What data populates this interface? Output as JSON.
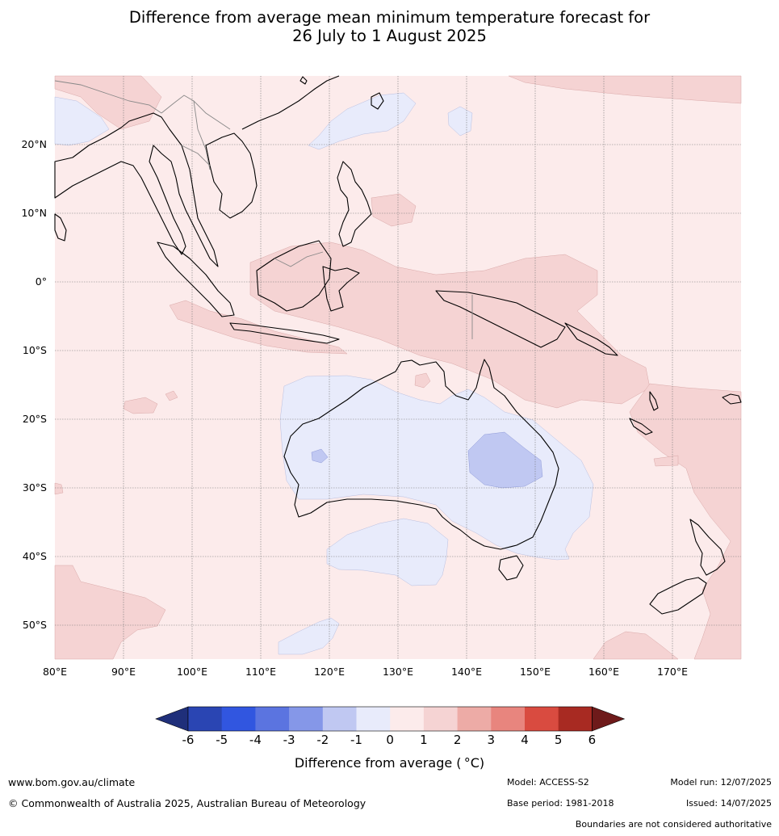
{
  "title": {
    "line1": "Difference from average mean minimum temperature forecast for",
    "line2": "26 July to 1 August 2025"
  },
  "map": {
    "lat_labels": [
      "20°N",
      "10°N",
      "0°",
      "10°S",
      "20°S",
      "30°S",
      "40°S",
      "50°S"
    ],
    "lon_labels": [
      "80°E",
      "90°E",
      "100°E",
      "110°E",
      "120°E",
      "130°E",
      "140°E",
      "150°E",
      "160°E",
      "170°E"
    ],
    "gridlines": true
  },
  "colorbar": {
    "ticks": [
      "-6",
      "-5",
      "-4",
      "-3",
      "-2",
      "-1",
      "0",
      "1",
      "2",
      "3",
      "4",
      "5",
      "6"
    ],
    "colors": [
      "#1f2f7a",
      "#2a45b3",
      "#3156e0",
      "#5b74e0",
      "#8597e8",
      "#c0c8f2",
      "#e8ebfb",
      "#fcebeb",
      "#f5d3d3",
      "#edaba6",
      "#e8857e",
      "#d94b40",
      "#a82a22",
      "#6e1a1a"
    ],
    "label": "Difference from average ( °C)"
  },
  "footer": {
    "website": "www.bom.gov.au/climate",
    "copyright": "© Commonwealth of Australia 2025, Australian Bureau of Meteorology",
    "model": "Model: ACCESS-S2",
    "base_period": "Base period: 1981-2018",
    "model_run": "Model run: 12/07/2025",
    "issued": "Issued: 14/07/2025",
    "disclaimer": "Boundaries are not considered authoritative"
  }
}
